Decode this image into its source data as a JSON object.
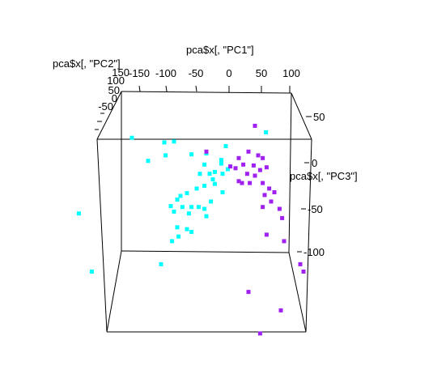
{
  "chart_data": {
    "type": "scatter",
    "x_label": "pca$x[, \"PC1\"]",
    "y_label": "pca$x[, \"PC2\"]",
    "z_label": "pca$x[, \"PC3\"]",
    "x_ticks": [
      "-150",
      "-100",
      "-50",
      "0",
      "50",
      "100"
    ],
    "y_ticks": [
      "150",
      "100",
      "50",
      "0",
      "-50",
      "-100"
    ],
    "z_ticks": [
      "50",
      "0",
      "-50",
      "-100"
    ],
    "series": [
      {
        "color": "#00FFFF",
        "points": [
          [
            57,
            33
          ],
          [
            -150,
            27
          ],
          [
            -100,
            22
          ],
          [
            -85,
            23
          ],
          [
            -98,
            8
          ],
          [
            -58,
            9
          ],
          [
            -35,
            10
          ],
          [
            -125,
            2
          ],
          [
            -5,
            18
          ],
          [
            -12,
            3
          ],
          [
            -38,
            -2
          ],
          [
            -12,
            -1
          ],
          [
            -22,
            -10
          ],
          [
            -2,
            -7
          ],
          [
            -30,
            -12
          ],
          [
            -45,
            -12
          ],
          [
            -22,
            -23
          ],
          [
            -38,
            -25
          ],
          [
            -50,
            -28
          ],
          [
            -65,
            -33
          ],
          [
            -10,
            -32
          ],
          [
            -75,
            -36
          ],
          [
            -80,
            -40
          ],
          [
            -72,
            -48
          ],
          [
            -58,
            -48
          ],
          [
            -47,
            -48
          ],
          [
            -38,
            -50
          ],
          [
            -28,
            -42
          ],
          [
            -90,
            -47
          ],
          [
            -85,
            -53
          ],
          [
            -62,
            -55
          ],
          [
            -35,
            -58
          ],
          [
            -80,
            -70
          ],
          [
            -65,
            -72
          ],
          [
            -58,
            -75
          ],
          [
            -78,
            -80
          ],
          [
            -88,
            -85
          ],
          [
            -105,
            -110
          ],
          [
            -232,
            -55
          ],
          [
            -212,
            -118
          ],
          [
            -10,
            -12
          ],
          [
            -25,
            -18
          ]
        ]
      },
      {
        "color": "#A020F0",
        "points": [
          [
            40,
            40
          ],
          [
            -35,
            12
          ],
          [
            15,
            5
          ],
          [
            30,
            12
          ],
          [
            45,
            8
          ],
          [
            52,
            5
          ],
          [
            22,
            -2
          ],
          [
            38,
            -3
          ],
          [
            48,
            -8
          ],
          [
            58,
            -5
          ],
          [
            28,
            -12
          ],
          [
            40,
            -14
          ],
          [
            20,
            -22
          ],
          [
            52,
            -22
          ],
          [
            62,
            -28
          ],
          [
            70,
            -32
          ],
          [
            55,
            -35
          ],
          [
            65,
            -42
          ],
          [
            52,
            -48
          ],
          [
            78,
            -50
          ],
          [
            82,
            -60
          ],
          [
            58,
            -78
          ],
          [
            85,
            -85
          ],
          [
            110,
            -110
          ],
          [
            115,
            -118
          ],
          [
            30,
            -140
          ],
          [
            80,
            -160
          ],
          [
            48,
            -185
          ],
          [
            2,
            -4
          ],
          [
            10,
            -6
          ],
          [
            15,
            -20
          ],
          [
            32,
            -22
          ]
        ]
      }
    ]
  }
}
